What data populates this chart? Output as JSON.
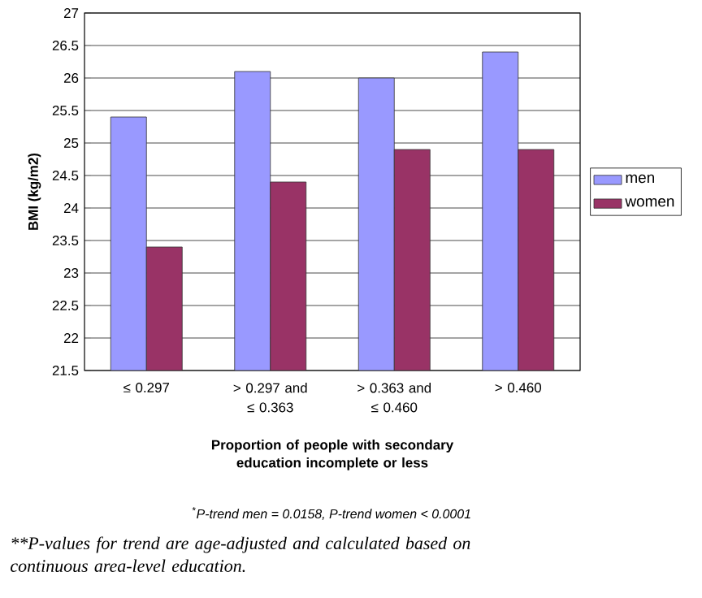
{
  "chart_data": {
    "type": "bar",
    "categories": [
      "≤ 0.297",
      "> 0.297 and ≤ 0.363",
      "> 0.363 and ≤ 0.460",
      "> 0.460"
    ],
    "series": [
      {
        "name": "men",
        "color": "#9999ff",
        "values": [
          25.4,
          26.1,
          26.0,
          26.4
        ]
      },
      {
        "name": "women",
        "color": "#993366",
        "values": [
          23.4,
          24.4,
          24.9,
          24.9
        ]
      }
    ],
    "xlabel": "Proportion of people with secondary education incomplete or less",
    "ylabel": "BMI (kg/m2)",
    "ylim": [
      21.5,
      27
    ],
    "yticks": [
      21.5,
      22,
      22.5,
      23,
      23.5,
      24,
      24.5,
      25,
      25.5,
      26,
      26.5,
      27
    ],
    "grid": "y",
    "legend": "right",
    "annotations": [
      "$^{*}$P-trend men = 0.0158, P-trend women < 0.0001",
      "**P-values for trend are age-adjusted and calculated based on continuous area-level education."
    ]
  }
}
